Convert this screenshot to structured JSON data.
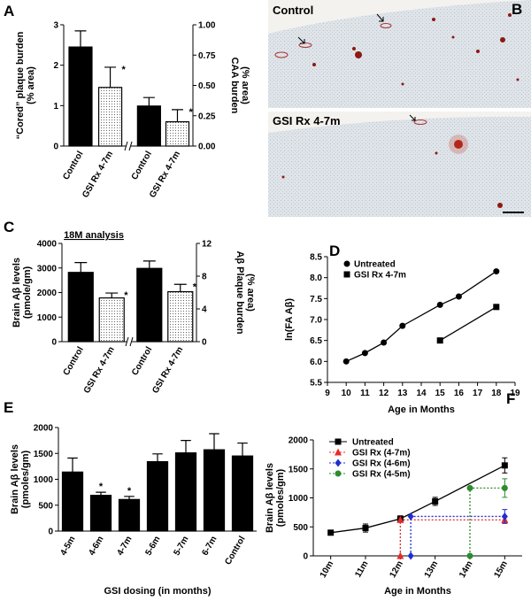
{
  "chart_data": [
    {
      "type": "bar",
      "panel_label": "A",
      "categories": [
        "Control",
        "GSI Rx 4-7m",
        "Control",
        "GSI Rx 4-7m"
      ],
      "values": [
        2.45,
        1.45,
        0.33,
        0.2
      ],
      "errors": [
        0.4,
        0.5,
        0.07,
        0.1
      ],
      "value_axis": [
        "y",
        "y",
        "y2",
        "y2"
      ],
      "fills": [
        "solid",
        "dotted",
        "solid",
        "dotted"
      ],
      "color": "#000000",
      "ylabel": [
        "“Cored” plaque burden",
        "(% area)"
      ],
      "y2label": [
        "CAA burden",
        "(% area)"
      ],
      "ylim": [
        0,
        3
      ],
      "yticks": [
        0,
        1,
        2,
        3
      ],
      "y2lim": [
        0,
        1
      ],
      "y2ticks": [
        {
          "value": 0,
          "label": "0.00"
        },
        {
          "value": 0.25,
          "label": "0.25"
        },
        {
          "value": 0.5,
          "label": "0.50"
        },
        {
          "value": 0.75,
          "label": "0.75"
        },
        {
          "value": 1,
          "label": "1.00"
        }
      ],
      "annotations": [
        {
          "text": "*",
          "index": 1
        },
        {
          "text": "*",
          "index": 3
        }
      ]
    },
    {
      "type": "bar",
      "panel_label": "C",
      "subtitle": "18M analysis",
      "categories": [
        "Control",
        "GSI Rx 4-7m",
        "Control",
        "GSI Rx 4-7m"
      ],
      "values": [
        2820,
        1780,
        8.95,
        6.1
      ],
      "errors": [
        400,
        200,
        0.9,
        0.9
      ],
      "value_axis": [
        "y",
        "y",
        "y2",
        "y2"
      ],
      "fills": [
        "solid",
        "dotted",
        "solid",
        "dotted"
      ],
      "color": "#000000",
      "ylabel": [
        "Brain Aβ levels",
        "(pmole/gm)"
      ],
      "y2label": [
        "Aβ Plaque burden",
        "(% area)"
      ],
      "ylim": [
        0,
        4000
      ],
      "yticks": [
        0,
        1000,
        2000,
        3000,
        4000
      ],
      "y2lim": [
        0,
        12
      ],
      "y2ticks": [
        0,
        4,
        8,
        12
      ],
      "annotations": [
        {
          "text": "*",
          "index": 1
        },
        {
          "text": "*",
          "index": 3
        }
      ]
    },
    {
      "type": "line",
      "panel_label": "D",
      "xlabel": "Age in Months",
      "ylabel": [
        "ln(FA Aβ)"
      ],
      "xlim": [
        9,
        19
      ],
      "xticks": [
        9,
        10,
        11,
        12,
        13,
        14,
        15,
        16,
        17,
        18,
        19
      ],
      "ylim": [
        5.5,
        8.5
      ],
      "yticks": [
        5.5,
        {
          "value": 6,
          "label": "6.0"
        },
        6.5,
        {
          "value": 7,
          "label": "7.0"
        },
        7.5,
        {
          "value": 8,
          "label": "8.0"
        },
        8.5
      ],
      "legend": "top-left",
      "series": [
        {
          "name": "Untreated",
          "color": "#000000",
          "marker": "circle",
          "dash": "solid",
          "x": [
            10,
            11,
            12,
            13,
            15,
            16,
            18
          ],
          "values": [
            6.0,
            6.2,
            6.45,
            6.85,
            7.35,
            7.55,
            8.15
          ]
        },
        {
          "name": "GSI Rx 4-7m",
          "color": "#000000",
          "marker": "square",
          "dash": "solid",
          "x": [
            15,
            18
          ],
          "values": [
            6.5,
            7.3
          ]
        }
      ]
    },
    {
      "type": "bar",
      "panel_label": "E",
      "categories": [
        "4-5m",
        "4-6m",
        "4-7m",
        "5-6m",
        "5-7m",
        "6-7m",
        "Control"
      ],
      "values": [
        1140,
        690,
        610,
        1340,
        1510,
        1570,
        1450
      ],
      "errors": [
        270,
        60,
        60,
        150,
        240,
        310,
        250
      ],
      "color": "#000000",
      "ylabel": [
        "Brain Aβ levels",
        "(pmoles/gm)"
      ],
      "xlabel": "GSI dosing (in months)",
      "ylim": [
        0,
        2000
      ],
      "yticks": [
        0,
        500,
        1000,
        1500,
        2000
      ],
      "annotations": [
        {
          "text": "*",
          "index": 1
        },
        {
          "text": "*",
          "index": 2
        }
      ]
    },
    {
      "type": "line",
      "panel_label": "F",
      "xlabel": "Age in Months",
      "ylabel": [
        "Brain Aβ levels",
        "(pmoles/gm)"
      ],
      "xlim": [
        9.5,
        15.5
      ],
      "xticks": [
        {
          "value": 10,
          "label": "10m"
        },
        {
          "value": 11,
          "label": "11m"
        },
        {
          "value": 12,
          "label": "12m"
        },
        {
          "value": 13,
          "label": "13m"
        },
        {
          "value": 14,
          "label": "14m"
        },
        {
          "value": 15,
          "label": "15m"
        }
      ],
      "ylim": [
        0,
        2000
      ],
      "yticks": [
        0,
        500,
        1000,
        1500,
        2000
      ],
      "legend": "top-left",
      "series": [
        {
          "name": "Untreated",
          "color": "#000000",
          "marker": "square",
          "dash": "solid",
          "x": [
            10,
            11,
            12,
            13,
            15
          ],
          "values": [
            400,
            480,
            640,
            940,
            1560
          ],
          "errors": [
            40,
            70,
            50,
            70,
            130
          ]
        },
        {
          "name": "GSI Rx (4-7m)",
          "color": "#e8292b",
          "marker": "triangle",
          "dash": "dotted",
          "x": [
            12,
            12,
            15
          ],
          "values": [
            0,
            620,
            620
          ],
          "errors": [
            null,
            null,
            50
          ]
        },
        {
          "name": "GSI Rx (4-6m)",
          "color": "#1f2fd0",
          "marker": "diamond",
          "dash": "dotted",
          "x": [
            12.3,
            12.3,
            15
          ],
          "values": [
            0,
            680,
            680
          ],
          "errors": [
            null,
            null,
            120
          ]
        },
        {
          "name": "GSI Rx (4-5m)",
          "color": "#2e8b2e",
          "marker": "circle",
          "dash": "dotted",
          "x": [
            14,
            14,
            15
          ],
          "values": [
            0,
            1170,
            1170
          ],
          "errors": [
            null,
            null,
            160
          ]
        }
      ]
    }
  ],
  "images": [
    {
      "panel_label": "B",
      "labels": [
        "Control",
        "GSI Rx 4-7m"
      ]
    }
  ]
}
